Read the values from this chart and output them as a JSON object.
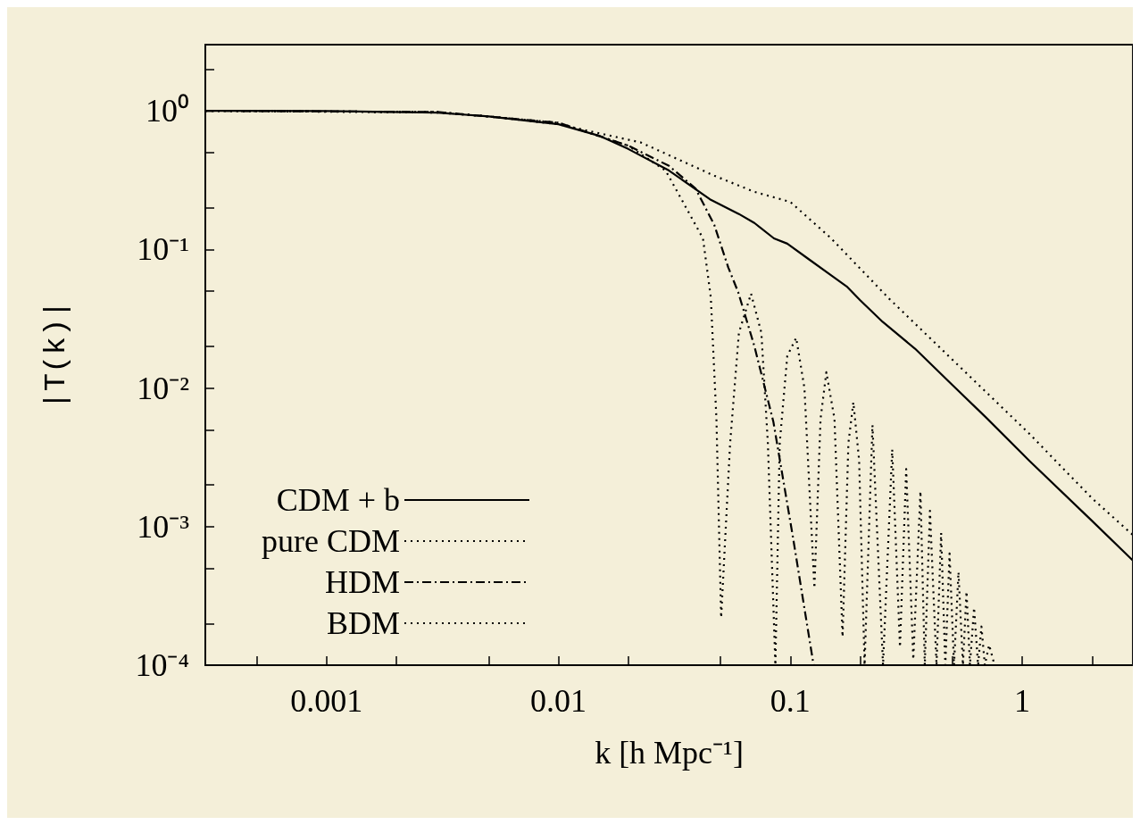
{
  "chart_data": {
    "type": "line",
    "xlabel": "k [h Mpc⁻¹]",
    "ylabel": "|T(k)|",
    "log": "xy",
    "grid": false,
    "legend": "bottom left",
    "marker": "none",
    "xlim": [
      0.0003,
      3
    ],
    "ylim": [
      0.0001,
      3
    ],
    "xticks": [
      {
        "value": 0.0005,
        "label": null
      },
      0.001,
      {
        "value": 0.002,
        "label": null
      },
      {
        "value": 0.005,
        "label": null
      },
      0.01,
      {
        "value": 0.02,
        "label": null
      },
      {
        "value": 0.05,
        "label": null
      },
      0.1,
      {
        "value": 0.2,
        "label": null
      },
      {
        "value": 0.5,
        "label": null
      },
      1,
      {
        "value": 2,
        "label": null
      }
    ],
    "yticks": [
      {
        "value": 0.0001,
        "label": "10⁻⁴"
      },
      {
        "value": 0.0002,
        "label": null
      },
      {
        "value": 0.0005,
        "label": null
      },
      {
        "value": 0.001,
        "label": "10⁻³"
      },
      {
        "value": 0.002,
        "label": null
      },
      {
        "value": 0.005,
        "label": null
      },
      {
        "value": 0.01,
        "label": "10⁻²"
      },
      {
        "value": 0.02,
        "label": null
      },
      {
        "value": 0.05,
        "label": null
      },
      {
        "value": 0.1,
        "label": "10⁻¹"
      },
      {
        "value": 0.2,
        "label": null
      },
      {
        "value": 0.5,
        "label": null
      },
      {
        "value": 1,
        "label": "10⁰"
      },
      {
        "value": 2,
        "label": null
      }
    ],
    "series": [
      {
        "name": "CDM + b",
        "color": "#000000",
        "line_style": "solid",
        "x": [
          0.0003,
          0.001,
          0.003,
          0.005,
          0.01,
          0.015,
          0.02,
          0.03,
          0.045,
          0.06,
          0.07,
          0.085,
          0.097,
          0.12,
          0.15,
          0.175,
          0.2,
          0.25,
          0.345,
          0.5,
          0.7,
          1.07,
          2,
          3
        ],
        "values": [
          1,
          0.995,
          0.97,
          0.91,
          0.8,
          0.66,
          0.53,
          0.37,
          0.23,
          0.18,
          0.155,
          0.12,
          0.11,
          0.085,
          0.065,
          0.054,
          0.043,
          0.03,
          0.0192,
          0.0105,
          0.0061,
          0.003,
          0.0011,
          0.00057
        ]
      },
      {
        "name": "pure CDM",
        "color": "#000000",
        "line_style": "dotted",
        "x": [
          0.0003,
          0.003,
          0.005,
          0.01,
          0.0227,
          0.047,
          0.07,
          0.1,
          0.15,
          0.267,
          0.5,
          1.07,
          2,
          3
        ],
        "values": [
          1,
          0.97,
          0.91,
          0.8,
          0.59,
          0.34,
          0.26,
          0.22,
          0.12,
          0.044,
          0.016,
          0.0047,
          0.0016,
          0.00087
        ]
      },
      {
        "name": "HDM",
        "color": "#000000",
        "line_style": "dashdot",
        "x": [
          0.0003,
          0.003,
          0.01,
          0.02,
          0.03,
          0.039,
          0.047,
          0.054,
          0.0596,
          0.07,
          0.0845,
          0.1026,
          0.126
        ],
        "values": [
          1,
          0.98,
          0.82,
          0.56,
          0.4,
          0.275,
          0.15,
          0.074,
          0.049,
          0.02,
          0.0057,
          0.00084,
          0.0001
        ]
      },
      {
        "name": "BDM",
        "color": "#000000",
        "line_style": "dotted",
        "x": [
          0.0003,
          0.003,
          0.01,
          0.02,
          0.029,
          0.042,
          0.0454,
          0.048,
          0.0503,
          0.055,
          0.06,
          0.0677,
          0.075,
          0.08,
          0.0862,
          0.09,
          0.097,
          0.106,
          0.115,
          0.127,
          0.135,
          0.143,
          0.155,
          0.168,
          0.178,
          0.187,
          0.198,
          0.209,
          0.226,
          0.251,
          0.275,
          0.297,
          0.316,
          0.339,
          0.364,
          0.38,
          0.4,
          0.427,
          0.447,
          0.466,
          0.486,
          0.508,
          0.531,
          0.555,
          0.575,
          0.595,
          0.62,
          0.645,
          0.667,
          0.69,
          0.72,
          0.76
        ],
        "values": [
          1,
          0.98,
          0.82,
          0.56,
          0.37,
          0.12,
          0.045,
          0.006,
          0.00022,
          0.004,
          0.025,
          0.048,
          0.025,
          0.004,
          0.0001,
          0.004,
          0.017,
          0.023,
          0.01,
          0.00036,
          0.006,
          0.013,
          0.006,
          0.00016,
          0.004,
          0.0079,
          0.003,
          0.0001,
          0.0054,
          0.0001,
          0.0036,
          0.000135,
          0.0026,
          0.00011,
          0.0018,
          0.0001,
          0.0013,
          0.0001,
          0.0009,
          0.0001,
          0.00064,
          0.0001,
          0.00047,
          0.0001,
          0.00034,
          0.0001,
          0.00026,
          0.0001,
          0.00019,
          0.0001,
          0.00014,
          0.0001
        ]
      }
    ]
  }
}
